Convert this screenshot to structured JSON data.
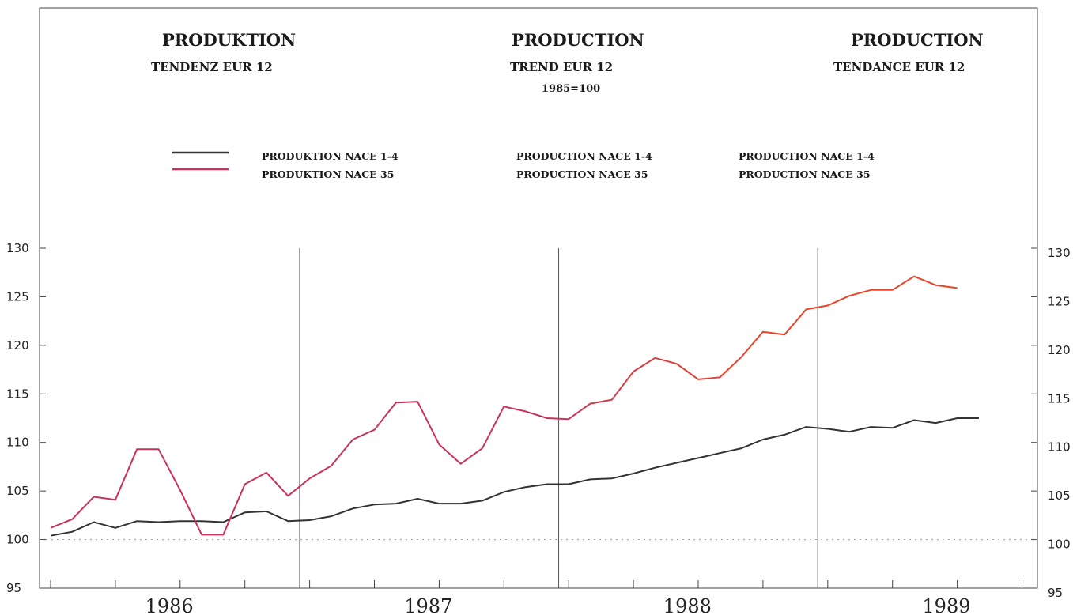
{
  "headers": {
    "de": {
      "title": "PRODUKTION",
      "subtitle": "TENDENZ   EUR  12"
    },
    "en": {
      "title": "PRODUCTION",
      "subtitle": "TREND   EUR  12",
      "base": "1985=100"
    },
    "fr": {
      "title": "PRODUCTION",
      "subtitle": "TENDANCE   EUR  12"
    }
  },
  "legend": {
    "de": [
      "PRODUKTION NACE 1-4",
      "PRODUKTION NACE 35"
    ],
    "en": [
      "PRODUCTION NACE 1-4",
      "PRODUCTION NACE 35"
    ],
    "fr": [
      "PRODUCTION NACE 1-4",
      "PRODUCTION NACE 35"
    ]
  },
  "chart_data": {
    "type": "line",
    "title": "",
    "xlabel": "",
    "ylabel": "",
    "ylim": [
      95,
      130
    ],
    "yticks": [
      95,
      100,
      105,
      110,
      115,
      120,
      125,
      130
    ],
    "years": [
      "1986",
      "1987",
      "1988",
      "1989"
    ],
    "x_start": "1986-01",
    "grid": false,
    "reference_line": 100,
    "year_dividers": [
      "1987",
      "1988",
      "1989"
    ],
    "series": [
      {
        "name": "PRODUKTION NACE 1-4",
        "color": "#333333",
        "values": [
          100.4,
          100.8,
          101.8,
          101.2,
          101.9,
          101.8,
          101.9,
          101.9,
          101.8,
          102.8,
          102.9,
          101.9,
          102.0,
          102.4,
          103.2,
          103.6,
          103.7,
          104.2,
          103.7,
          103.7,
          104.0,
          104.9,
          105.4,
          105.7,
          105.7,
          106.2,
          106.3,
          106.8,
          107.4,
          107.9,
          108.4,
          108.9,
          109.4,
          110.3,
          110.8,
          111.6,
          111.4,
          111.1,
          111.6,
          111.5,
          112.3,
          112.0,
          112.5,
          112.5
        ]
      },
      {
        "name": "PRODUKTION NACE 35",
        "color": "#c8335c",
        "color_end": "#e8452a",
        "values": [
          101.2,
          102.1,
          104.4,
          104.1,
          109.3,
          109.3,
          105.1,
          100.5,
          100.5,
          105.7,
          106.9,
          104.5,
          106.3,
          107.6,
          110.3,
          111.3,
          114.1,
          114.2,
          109.8,
          107.8,
          109.4,
          113.7,
          113.2,
          112.5,
          112.4,
          114.0,
          114.4,
          117.3,
          118.7,
          118.1,
          116.5,
          116.7,
          118.8,
          121.4,
          121.1,
          123.7,
          124.1,
          125.1,
          125.7,
          125.7,
          127.1,
          126.2,
          125.9
        ]
      }
    ]
  }
}
